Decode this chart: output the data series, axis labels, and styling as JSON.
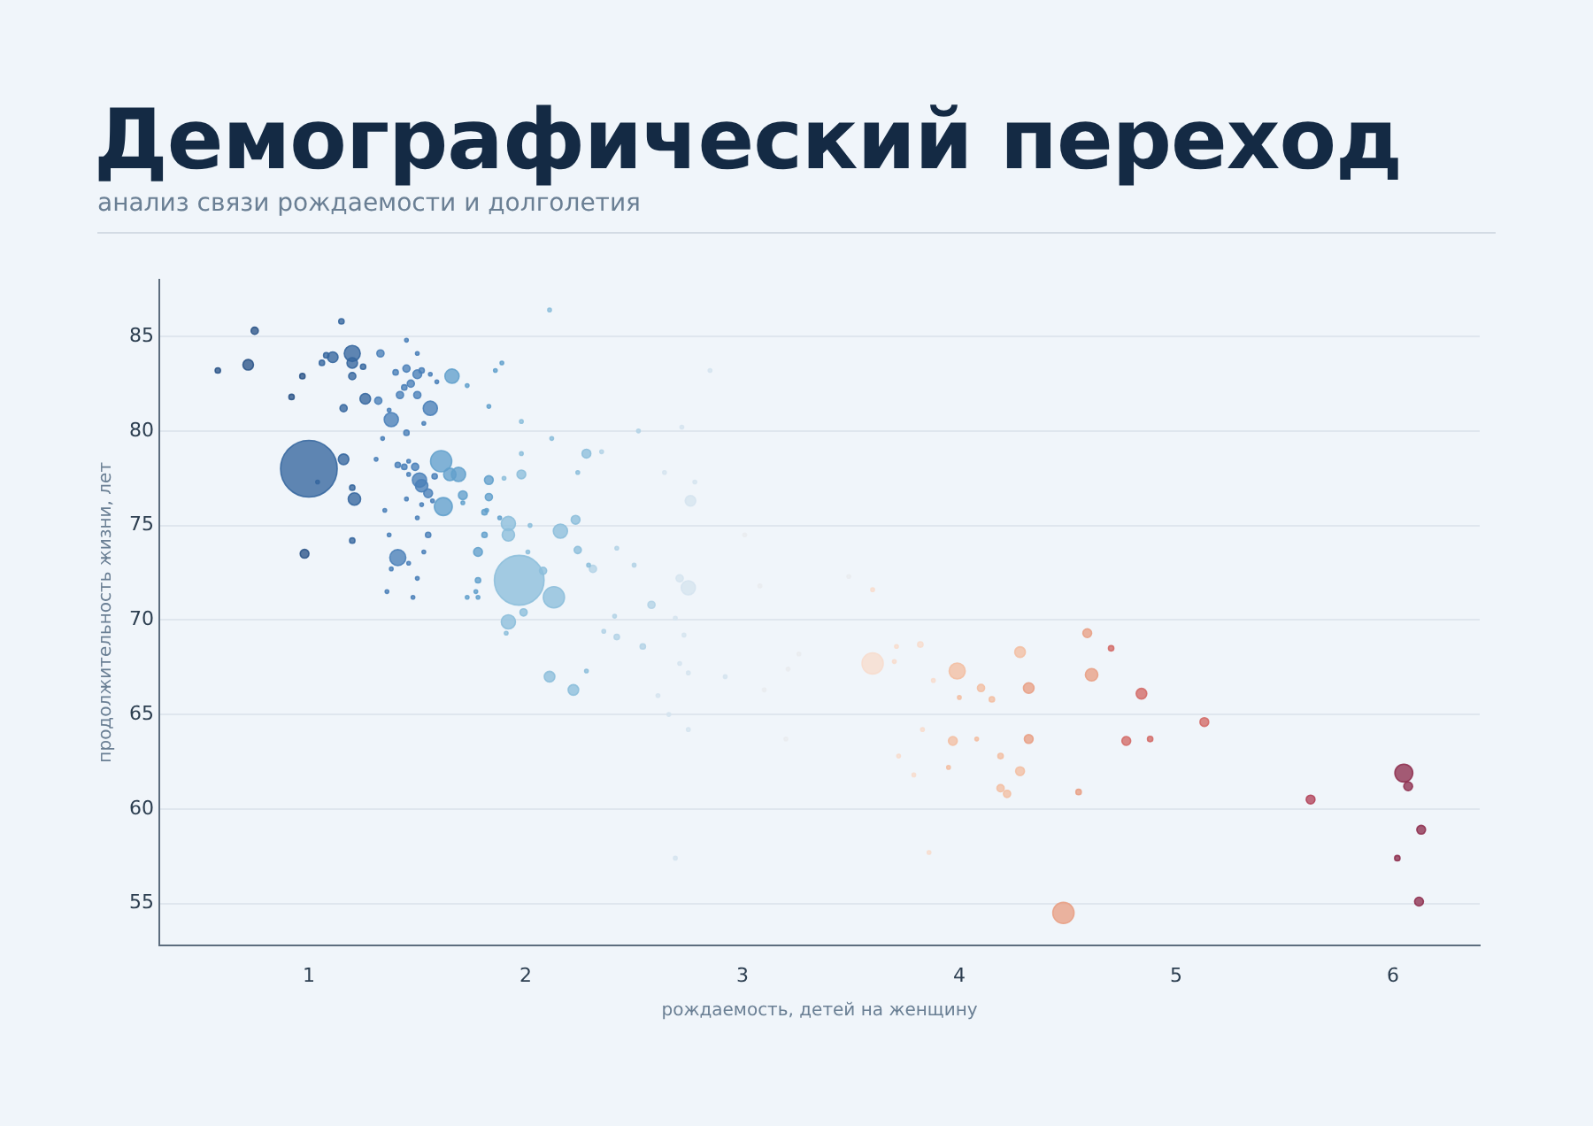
{
  "chart_data": {
    "type": "bubble",
    "title": "Демографический переход",
    "subtitle": "анализ связи рождаемости и долголетия",
    "xlabel": "рождаемость, детей на женщину",
    "ylabel": "продолжительность жизни, лет",
    "xlim": [
      0.31,
      6.4
    ],
    "ylim": [
      52.8,
      88
    ],
    "xticks": [
      1,
      2,
      3,
      4,
      5,
      6
    ],
    "yticks": [
      55,
      60,
      65,
      70,
      75,
      80,
      85
    ],
    "grid": "y",
    "legend": false,
    "series": [
      {
        "color": "#2b5488",
        "x": [
          0.58,
          0.72,
          0.75,
          0.92,
          0.97,
          0.98
        ],
        "values": [
          83.2,
          83.5,
          85.3,
          81.8,
          82.9,
          73.5
        ],
        "sizes": [
          0.009,
          0.035,
          0.016,
          0.009,
          0.009,
          0.024
        ]
      },
      {
        "color": "#35669e",
        "x": [
          1.0,
          1.04,
          1.06,
          1.08,
          1.11,
          1.15,
          1.2,
          1.2,
          1.2,
          1.25,
          1.16,
          1.21,
          1.2,
          1.2,
          1.26,
          1.16
        ],
        "values": [
          78.0,
          77.3,
          83.6,
          84.0,
          83.9,
          85.8,
          84.1,
          83.6,
          82.9,
          83.4,
          78.5,
          76.4,
          74.2,
          77.0,
          81.7,
          81.2
        ],
        "sizes": [
          1,
          0.004,
          0.009,
          0.009,
          0.035,
          0.009,
          0.08,
          0.035,
          0.016,
          0.009,
          0.035,
          0.048,
          0.009,
          0.009,
          0.035,
          0.016
        ]
      },
      {
        "color": "#4a80b8",
        "x": [
          1.32,
          1.33,
          1.45,
          1.38,
          1.37,
          1.45,
          1.5,
          1.4,
          1.5,
          1.52,
          1.56,
          1.59,
          1.47,
          1.44,
          1.42,
          1.5,
          1.56,
          1.45,
          1.53,
          1.34,
          1.31,
          1.41,
          1.44,
          1.46,
          1.49,
          1.51,
          1.52,
          1.46,
          1.58,
          1.55,
          1.35,
          1.45,
          1.57,
          1.52,
          1.5,
          1.37,
          1.41,
          1.38,
          1.46,
          1.53,
          1.55,
          1.5,
          1.36,
          1.48
        ],
        "values": [
          81.6,
          84.1,
          84.8,
          80.6,
          81.1,
          83.3,
          84.1,
          83.1,
          83.0,
          83.2,
          83.0,
          82.6,
          82.5,
          82.3,
          81.9,
          81.9,
          81.2,
          79.9,
          80.4,
          79.6,
          78.5,
          78.2,
          78.1,
          78.4,
          78.1,
          77.4,
          77.1,
          77.7,
          77.6,
          76.7,
          75.8,
          76.4,
          76.3,
          76.1,
          75.4,
          74.5,
          73.3,
          72.7,
          73.0,
          73.6,
          74.5,
          72.2,
          71.5,
          71.2
        ],
        "sizes": [
          0.016,
          0.016,
          0.004,
          0.063,
          0.004,
          0.016,
          0.004,
          0.009,
          0.024,
          0.009,
          0.004,
          0.004,
          0.016,
          0.009,
          0.016,
          0.016,
          0.063,
          0.009,
          0.004,
          0.004,
          0.004,
          0.009,
          0.009,
          0.004,
          0.016,
          0.063,
          0.048,
          0.004,
          0.009,
          0.024,
          0.004,
          0.004,
          0.004,
          0.004,
          0.004,
          0.004,
          0.08,
          0.004,
          0.004,
          0.004,
          0.009,
          0.004,
          0.004,
          0.004
        ]
      },
      {
        "color": "#62a0cc",
        "x": [
          1.66,
          1.73,
          1.61,
          1.65,
          1.69,
          1.62,
          1.71,
          1.83,
          1.71,
          1.82,
          1.83,
          1.86,
          1.89,
          1.83,
          1.73,
          1.77,
          1.78,
          1.78,
          1.78,
          1.81,
          1.81,
          1.88
        ],
        "values": [
          82.9,
          82.4,
          78.4,
          77.7,
          77.7,
          76.0,
          76.6,
          77.4,
          76.2,
          75.8,
          81.3,
          83.2,
          83.6,
          76.5,
          71.2,
          71.5,
          71.2,
          72.1,
          73.6,
          74.5,
          75.7,
          75.4
        ],
        "sizes": [
          0.063,
          0.004,
          0.14,
          0.048,
          0.063,
          0.1,
          0.024,
          0.024,
          0.004,
          0.004,
          0.004,
          0.004,
          0.004,
          0.016,
          0.004,
          0.004,
          0.004,
          0.009,
          0.024,
          0.009,
          0.009,
          0.004
        ]
      },
      {
        "color": "#8cbedb",
        "x": [
          1.9,
          1.98,
          1.98,
          1.98,
          2.12,
          1.92,
          1.92,
          2.02,
          2.16,
          2.23,
          2.24,
          2.29,
          2.01,
          1.97,
          2.08,
          2.13,
          1.99,
          1.92,
          1.91,
          2.11,
          2.22,
          2.28,
          2.11,
          2.28,
          2.24
        ],
        "values": [
          77.5,
          77.7,
          78.8,
          80.5,
          79.6,
          75.1,
          74.5,
          75.0,
          74.7,
          75.3,
          73.7,
          72.9,
          73.6,
          72.1,
          72.6,
          71.2,
          70.4,
          69.9,
          69.3,
          67.0,
          66.3,
          67.3,
          86.4,
          78.8,
          77.8
        ],
        "sizes": [
          0.004,
          0.024,
          0.004,
          0.004,
          0.004,
          0.063,
          0.048,
          0.004,
          0.063,
          0.024,
          0.016,
          0.004,
          0.004,
          0.77,
          0.016,
          0.14,
          0.016,
          0.063,
          0.004,
          0.035,
          0.035,
          0.004,
          0.004,
          0.024,
          0.004
        ]
      },
      {
        "color": "#b3d3e6",
        "x": [
          2.31,
          2.52,
          2.35,
          2.42,
          2.5,
          2.58,
          2.41,
          2.36,
          2.42,
          2.54
        ],
        "values": [
          72.7,
          80.0,
          78.9,
          73.8,
          72.9,
          70.8,
          70.2,
          69.4,
          69.1,
          68.6
        ],
        "sizes": [
          0.016,
          0.004,
          0.004,
          0.004,
          0.004,
          0.016,
          0.004,
          0.004,
          0.009,
          0.009
        ]
      },
      {
        "color": "#d5e4ef",
        "x": [
          2.85,
          2.72,
          2.64,
          2.78,
          2.76,
          2.71,
          2.75,
          2.69,
          2.73,
          2.71,
          2.75,
          2.61,
          2.66,
          2.75,
          2.69,
          2.92
        ],
        "values": [
          83.2,
          80.2,
          77.8,
          77.3,
          76.3,
          72.2,
          71.7,
          70.1,
          69.2,
          67.7,
          67.2,
          66.0,
          65.0,
          64.2,
          57.4,
          67.0
        ],
        "sizes": [
          0.004,
          0.004,
          0.004,
          0.004,
          0.035,
          0.016,
          0.063,
          0.004,
          0.004,
          0.004,
          0.004,
          0.004,
          0.004,
          0.004,
          0.004,
          0.004
        ]
      },
      {
        "color": "#e9ecef",
        "x": [
          3.01,
          3.08,
          3.1,
          3.21,
          3.26,
          3.49,
          3.2
        ],
        "values": [
          74.5,
          71.8,
          66.3,
          67.4,
          68.2,
          72.3,
          63.7
        ],
        "sizes": [
          0.004,
          0.004,
          0.004,
          0.004,
          0.004,
          0.004,
          0.004
        ]
      },
      {
        "color": "#f7dccd",
        "x": [
          3.6,
          3.6,
          3.72,
          3.79,
          3.82,
          3.71,
          3.7,
          3.88,
          3.83,
          3.86
        ],
        "values": [
          67.7,
          71.6,
          62.8,
          61.8,
          68.7,
          68.6,
          67.8,
          66.8,
          64.2,
          57.7
        ],
        "sizes": [
          0.14,
          0.004,
          0.004,
          0.004,
          0.009,
          0.004,
          0.004,
          0.004,
          0.004,
          0.004
        ]
      },
      {
        "color": "#f2bea2",
        "x": [
          4.28,
          3.99,
          4.1,
          4.15,
          4.0,
          3.97,
          4.08,
          3.95,
          4.19,
          4.28,
          4.19,
          4.22
        ],
        "values": [
          68.3,
          67.3,
          66.4,
          65.8,
          65.9,
          63.6,
          63.7,
          62.2,
          62.8,
          62.0,
          61.1,
          60.8
        ],
        "sizes": [
          0.035,
          0.08,
          0.016,
          0.009,
          0.004,
          0.024,
          0.004,
          0.004,
          0.009,
          0.024,
          0.016,
          0.016
        ]
      },
      {
        "color": "#e89f84",
        "x": [
          4.59,
          4.61,
          4.32,
          4.32,
          4.55,
          4.48
        ],
        "values": [
          69.3,
          67.1,
          66.4,
          63.7,
          60.9,
          54.5
        ],
        "sizes": [
          0.024,
          0.048,
          0.035,
          0.024,
          0.009,
          0.14
        ]
      },
      {
        "color": "#d36a66",
        "x": [
          4.7,
          4.84,
          5.13,
          4.77,
          4.88
        ],
        "values": [
          68.5,
          66.1,
          64.6,
          63.6,
          63.7
        ],
        "sizes": [
          0.009,
          0.035,
          0.024,
          0.024,
          0.009
        ]
      },
      {
        "color": "#b2435a",
        "x": [
          5.62
        ],
        "values": [
          60.5
        ],
        "sizes": [
          0.024
        ]
      },
      {
        "color": "#8e2f4f",
        "x": [
          6.05,
          6.07,
          6.13,
          6.02,
          6.12
        ],
        "values": [
          61.9,
          61.2,
          58.9,
          57.4,
          55.1
        ],
        "sizes": [
          0.1,
          0.024,
          0.024,
          0.009,
          0.024
        ]
      }
    ]
  }
}
